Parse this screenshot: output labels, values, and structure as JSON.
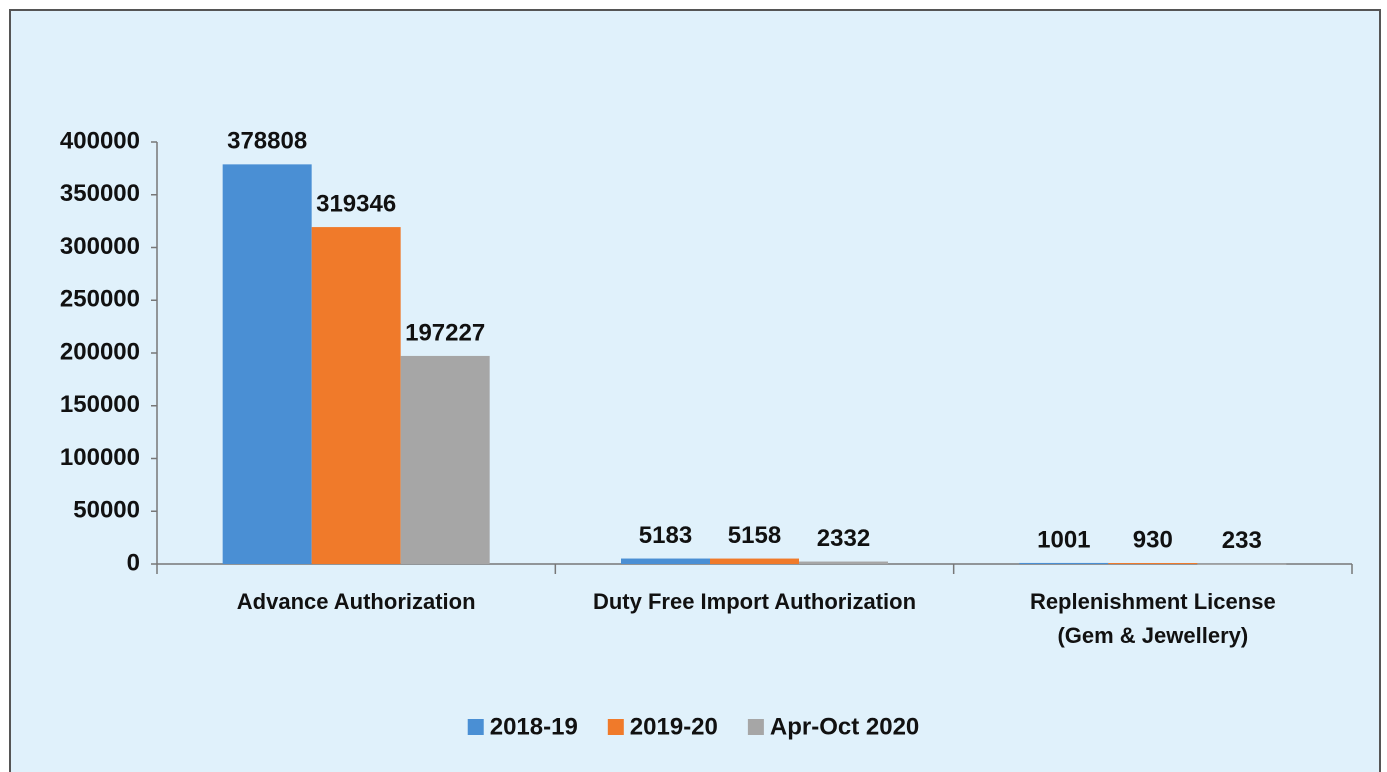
{
  "chart_data": {
    "type": "bar",
    "categories": [
      "Advance Authorization",
      "Duty Free Import Authorization",
      "Replenishment License\n(Gem & Jewellery)"
    ],
    "series": [
      {
        "name": "2018-19",
        "color": "#4a8fd4",
        "values": [
          378808,
          5183,
          1001
        ]
      },
      {
        "name": "2019-20",
        "color": "#f07a2a",
        "values": [
          319346,
          5158,
          930
        ]
      },
      {
        "name": "Apr-Oct 2020",
        "color": "#a6a6a6",
        "values": [
          197227,
          2332,
          233
        ]
      }
    ],
    "ylim": [
      0,
      400000
    ],
    "yticks": [
      0,
      50000,
      100000,
      150000,
      200000,
      250000,
      300000,
      350000,
      400000
    ],
    "legend": "bottom"
  }
}
